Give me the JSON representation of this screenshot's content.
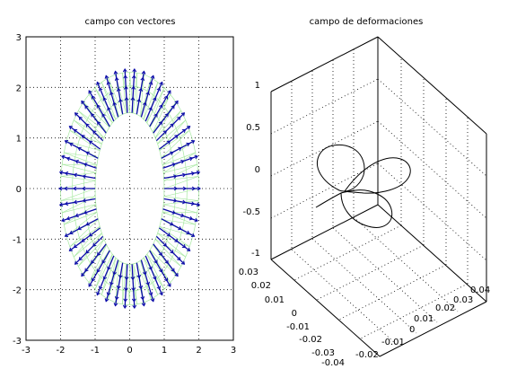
{
  "colors": {
    "vector": "#0a0aa8",
    "mesh": "#a6e8a0",
    "curve": "#000000",
    "grid": "#000000",
    "background": "#ffffff"
  },
  "chart_data": [
    {
      "type": "quiver",
      "title": "campo con vectores",
      "xlim": [
        -3,
        3
      ],
      "ylim": [
        -3,
        3
      ],
      "xticks": [
        "-3",
        "-2",
        "-1",
        "0",
        "1",
        "2",
        "3"
      ],
      "yticks": [
        "3",
        "2",
        "1",
        "0",
        "-1",
        "-2",
        "-3"
      ],
      "grid": true,
      "domain": {
        "shape": "annulus",
        "center": [
          0,
          0
        ],
        "inner_semi_axes": [
          1,
          1.5
        ],
        "outer_semi_axes": [
          2,
          2.3
        ]
      },
      "mesh_color": "light green",
      "vector_color": "dark blue",
      "vector_count": 46,
      "vector_field": "radial, pointing outward from inner boundary to outer boundary"
    },
    {
      "type": "line3d",
      "title": "campo de deformaciones",
      "zlim": [
        -1,
        1
      ],
      "zticks": [
        "1",
        "0.5",
        "0",
        "-0.5",
        "-1"
      ],
      "xticks": [
        "-0.04",
        "-0.03",
        "-0.02",
        "-0.01",
        "0",
        "0.01",
        "0.02",
        "0.03"
      ],
      "yticks": [
        "-0.02",
        "-0.01",
        "0",
        "0.01",
        "0.02",
        "0.03",
        "0.04"
      ],
      "grid": true,
      "curve_color": "black",
      "curve_description": "closed three-lobed loop curve near z = 0"
    }
  ]
}
